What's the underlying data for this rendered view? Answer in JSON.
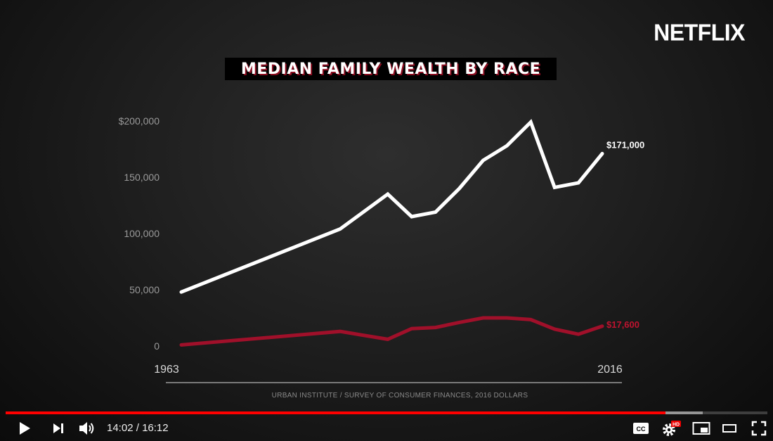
{
  "brand": "NETFLIX",
  "chart_data": {
    "type": "line",
    "title": "MEDIAN FAMILY WEALTH BY RACE",
    "source": "URBAN INSTITUTE / SURVEY OF CONSUMER FINANCES, 2016 DOLLARS",
    "x_labels": [
      "1963",
      "2016"
    ],
    "y_ticks": [
      {
        "value": 0,
        "label": "0"
      },
      {
        "value": 50000,
        "label": "50,000"
      },
      {
        "value": 100000,
        "label": "100,000"
      },
      {
        "value": 150000,
        "label": "150,000"
      },
      {
        "value": 200000,
        "label": "$200,000"
      }
    ],
    "xlim": [
      1963,
      2016
    ],
    "ylim": [
      0,
      200000
    ],
    "grid": false,
    "series": [
      {
        "color": "#ffffff",
        "end_label": "$171,000",
        "x": [
          1963,
          1983,
          1989,
          1992,
          1995,
          1998,
          2001,
          2004,
          2007,
          2010,
          2013,
          2016
        ],
        "y": [
          48000,
          104000,
          135000,
          115000,
          119000,
          140000,
          165000,
          178000,
          199000,
          141000,
          145000,
          171000
        ]
      },
      {
        "color": "#a0102a",
        "end_label": "$17,600",
        "x": [
          1963,
          1983,
          1989,
          1992,
          1995,
          1998,
          2001,
          2004,
          2007,
          2010,
          2013,
          2016
        ],
        "y": [
          1000,
          13000,
          6000,
          15500,
          16500,
          21000,
          25000,
          25000,
          23500,
          15000,
          10500,
          17600
        ]
      }
    ]
  },
  "player": {
    "current_time": "14:02",
    "duration": "16:12",
    "time_sep": " / ",
    "progress_played": 0.866,
    "progress_loaded": 0.915,
    "hd_badge": "HD",
    "cc_label": "CC"
  }
}
